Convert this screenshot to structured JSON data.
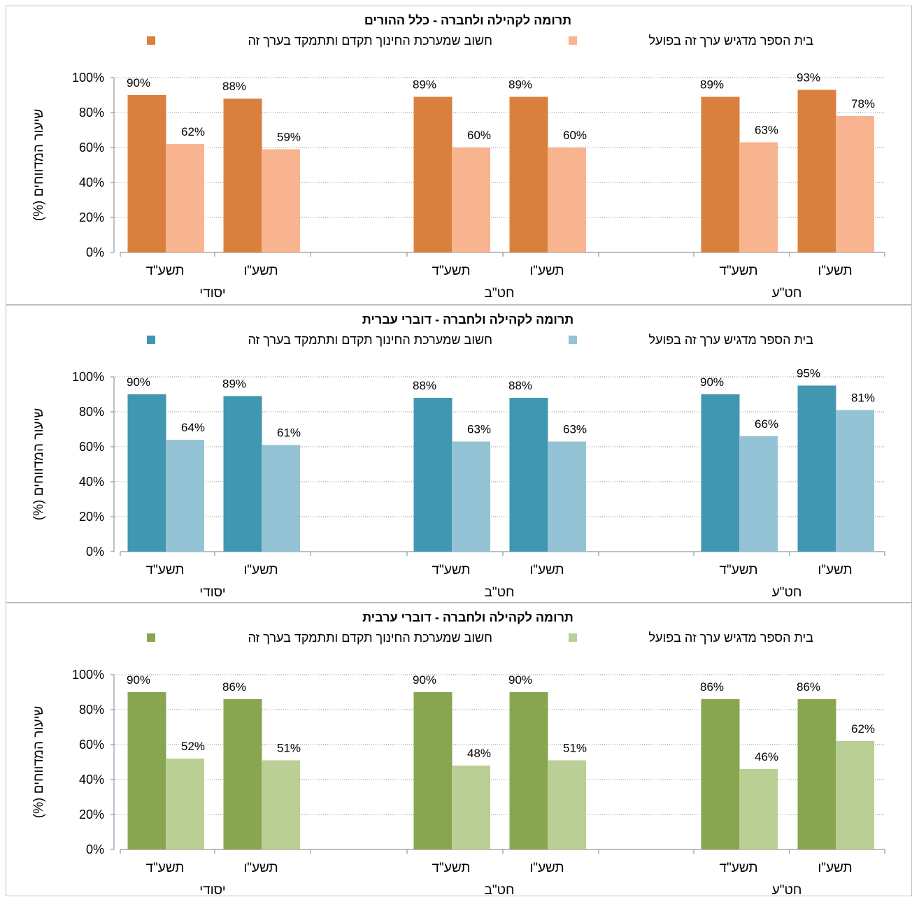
{
  "chart_data": [
    {
      "type": "bar",
      "title": "תרומה לקהילה ולחברה - כלל ההורים",
      "ylabel": "שיעור המדווחים (%)",
      "ylim": [
        0,
        100
      ],
      "yticks": [
        "0%",
        "20%",
        "40%",
        "60%",
        "80%",
        "100%"
      ],
      "grid": true,
      "legend_position": "top",
      "groups": [
        {
          "label": "יסודי",
          "categories": [
            "תשע\"ד",
            "תשע\"ו"
          ]
        },
        {
          "label": "חט\"ב",
          "categories": [
            "תשע\"ד",
            "תשע\"ו"
          ]
        },
        {
          "label": "חט\"ע",
          "categories": [
            "תשע\"ד",
            "תשע\"ו"
          ]
        }
      ],
      "series": [
        {
          "name": "חשוב שמערכת החינוך תקדם ותתמקד בערך זה",
          "color": "#D9803F",
          "values": [
            90,
            88,
            89,
            89,
            89,
            93
          ],
          "labels": [
            "90%",
            "88%",
            "89%",
            "89%",
            "89%",
            "93%"
          ]
        },
        {
          "name": "בית הספר מדגיש ערך זה בפועל",
          "color": "#F8B48F",
          "values": [
            62,
            59,
            60,
            60,
            63,
            78
          ],
          "labels": [
            "62%",
            "59%",
            "60%",
            "60%",
            "63%",
            "78%"
          ]
        }
      ]
    },
    {
      "type": "bar",
      "title": "תרומה לקהילה ולחברה - דוברי עברית",
      "ylabel": "שיעור המדווחים (%)",
      "ylim": [
        0,
        100
      ],
      "yticks": [
        "0%",
        "20%",
        "40%",
        "60%",
        "80%",
        "100%"
      ],
      "grid": true,
      "legend_position": "top",
      "groups": [
        {
          "label": "יסודי",
          "categories": [
            "תשע\"ד",
            "תשע\"ו"
          ]
        },
        {
          "label": "חט\"ב",
          "categories": [
            "תשע\"ד",
            "תשע\"ו"
          ]
        },
        {
          "label": "חט\"ע",
          "categories": [
            "תשע\"ד",
            "תשע\"ו"
          ]
        }
      ],
      "series": [
        {
          "name": "חשוב שמערכת החינוך תקדם ותתמקד בערך זה",
          "color": "#4197B0",
          "values": [
            90,
            89,
            88,
            88,
            90,
            95
          ],
          "labels": [
            "90%",
            "89%",
            "88%",
            "88%",
            "90%",
            "95%"
          ]
        },
        {
          "name": "בית הספר מדגיש ערך זה בפועל",
          "color": "#93C3D5",
          "values": [
            64,
            61,
            63,
            63,
            66,
            81
          ],
          "labels": [
            "64%",
            "61%",
            "63%",
            "63%",
            "66%",
            "81%"
          ]
        }
      ]
    },
    {
      "type": "bar",
      "title": "תרומה לקהילה ולחברה - דוברי ערבית",
      "ylabel": "שיעור המדווחים (%)",
      "ylim": [
        0,
        100
      ],
      "yticks": [
        "0%",
        "20%",
        "40%",
        "60%",
        "80%",
        "100%"
      ],
      "grid": true,
      "legend_position": "top",
      "groups": [
        {
          "label": "יסודי",
          "categories": [
            "תשע\"ד",
            "תשע\"ו"
          ]
        },
        {
          "label": "חט\"ב",
          "categories": [
            "תשע\"ד",
            "תשע\"ו"
          ]
        },
        {
          "label": "חט\"ע",
          "categories": [
            "תשע\"ד",
            "תשע\"ו"
          ]
        }
      ],
      "series": [
        {
          "name": "חשוב שמערכת החינוך תקדם ותתמקד בערך זה",
          "color": "#88A650",
          "values": [
            90,
            86,
            90,
            90,
            86,
            86
          ],
          "labels": [
            "90%",
            "86%",
            "90%",
            "90%",
            "86%",
            "86%"
          ]
        },
        {
          "name": "בית הספר מדגיש ערך זה בפועל",
          "color": "#BACF94",
          "values": [
            52,
            51,
            48,
            51,
            46,
            62
          ],
          "labels": [
            "52%",
            "51%",
            "48%",
            "51%",
            "46%",
            "62%"
          ]
        }
      ]
    }
  ]
}
